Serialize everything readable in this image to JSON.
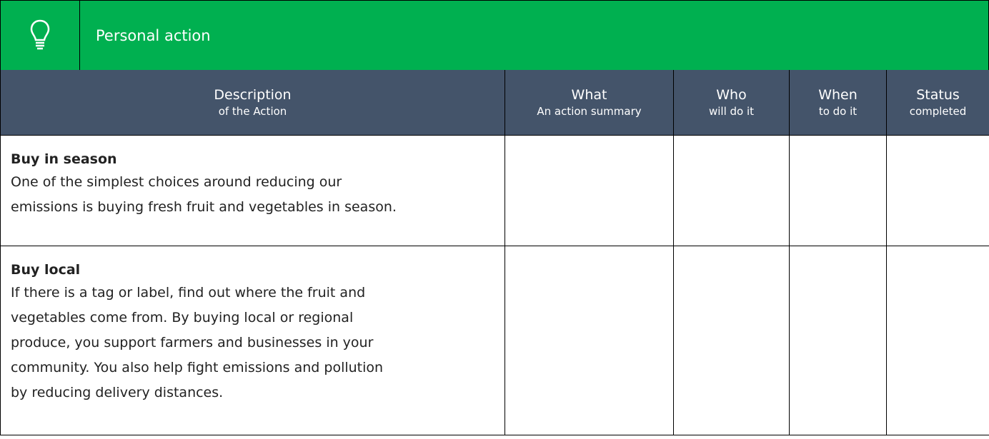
{
  "header": {
    "title": "Personal action"
  },
  "table": {
    "columns": [
      {
        "title": "Description",
        "subtitle": "of the Action"
      },
      {
        "title": "What",
        "subtitle": "An action summary"
      },
      {
        "title": "Who",
        "subtitle": "will do it"
      },
      {
        "title": "When",
        "subtitle": "to do it"
      },
      {
        "title": "Status",
        "subtitle": "completed"
      }
    ],
    "rows": [
      {
        "heading": "Buy in season",
        "lines": [
          "One of the simplest choices around reducing our",
          "emissions is buying fresh fruit and vegetables in season."
        ]
      },
      {
        "heading": "Buy local",
        "lines": [
          "If there is a tag or label, find out where the fruit and",
          "vegetables come from. By buying local or regional",
          "produce, you support farmers and businesses in your",
          "community. You also help fight emissions and pollution",
          "by reducing delivery distances."
        ]
      }
    ]
  }
}
